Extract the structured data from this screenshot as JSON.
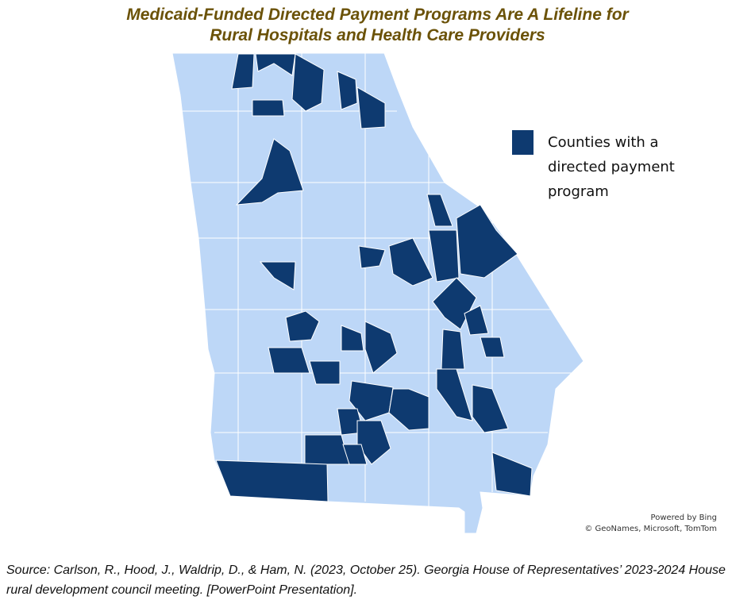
{
  "title": [
    "Medicaid-Funded Directed Payment Programs Are A Lifeline for",
    "Rural Hospitals and Health Care Providers"
  ],
  "legend": {
    "label": "Counties with a directed payment program",
    "color": "#0e3a70"
  },
  "map": {
    "base_color": "#bdd7f7"
  },
  "attribution": [
    "Powered by Bing",
    "© GeoNames, Microsoft, TomTom"
  ],
  "source": "Source: Carlson, R., Hood, J., Waldrip, D., & Ham, N. (2023, October 25). Georgia House of Representatives’ 2023-2024 House rural development council meeting. [PowerPoint Presentation]."
}
